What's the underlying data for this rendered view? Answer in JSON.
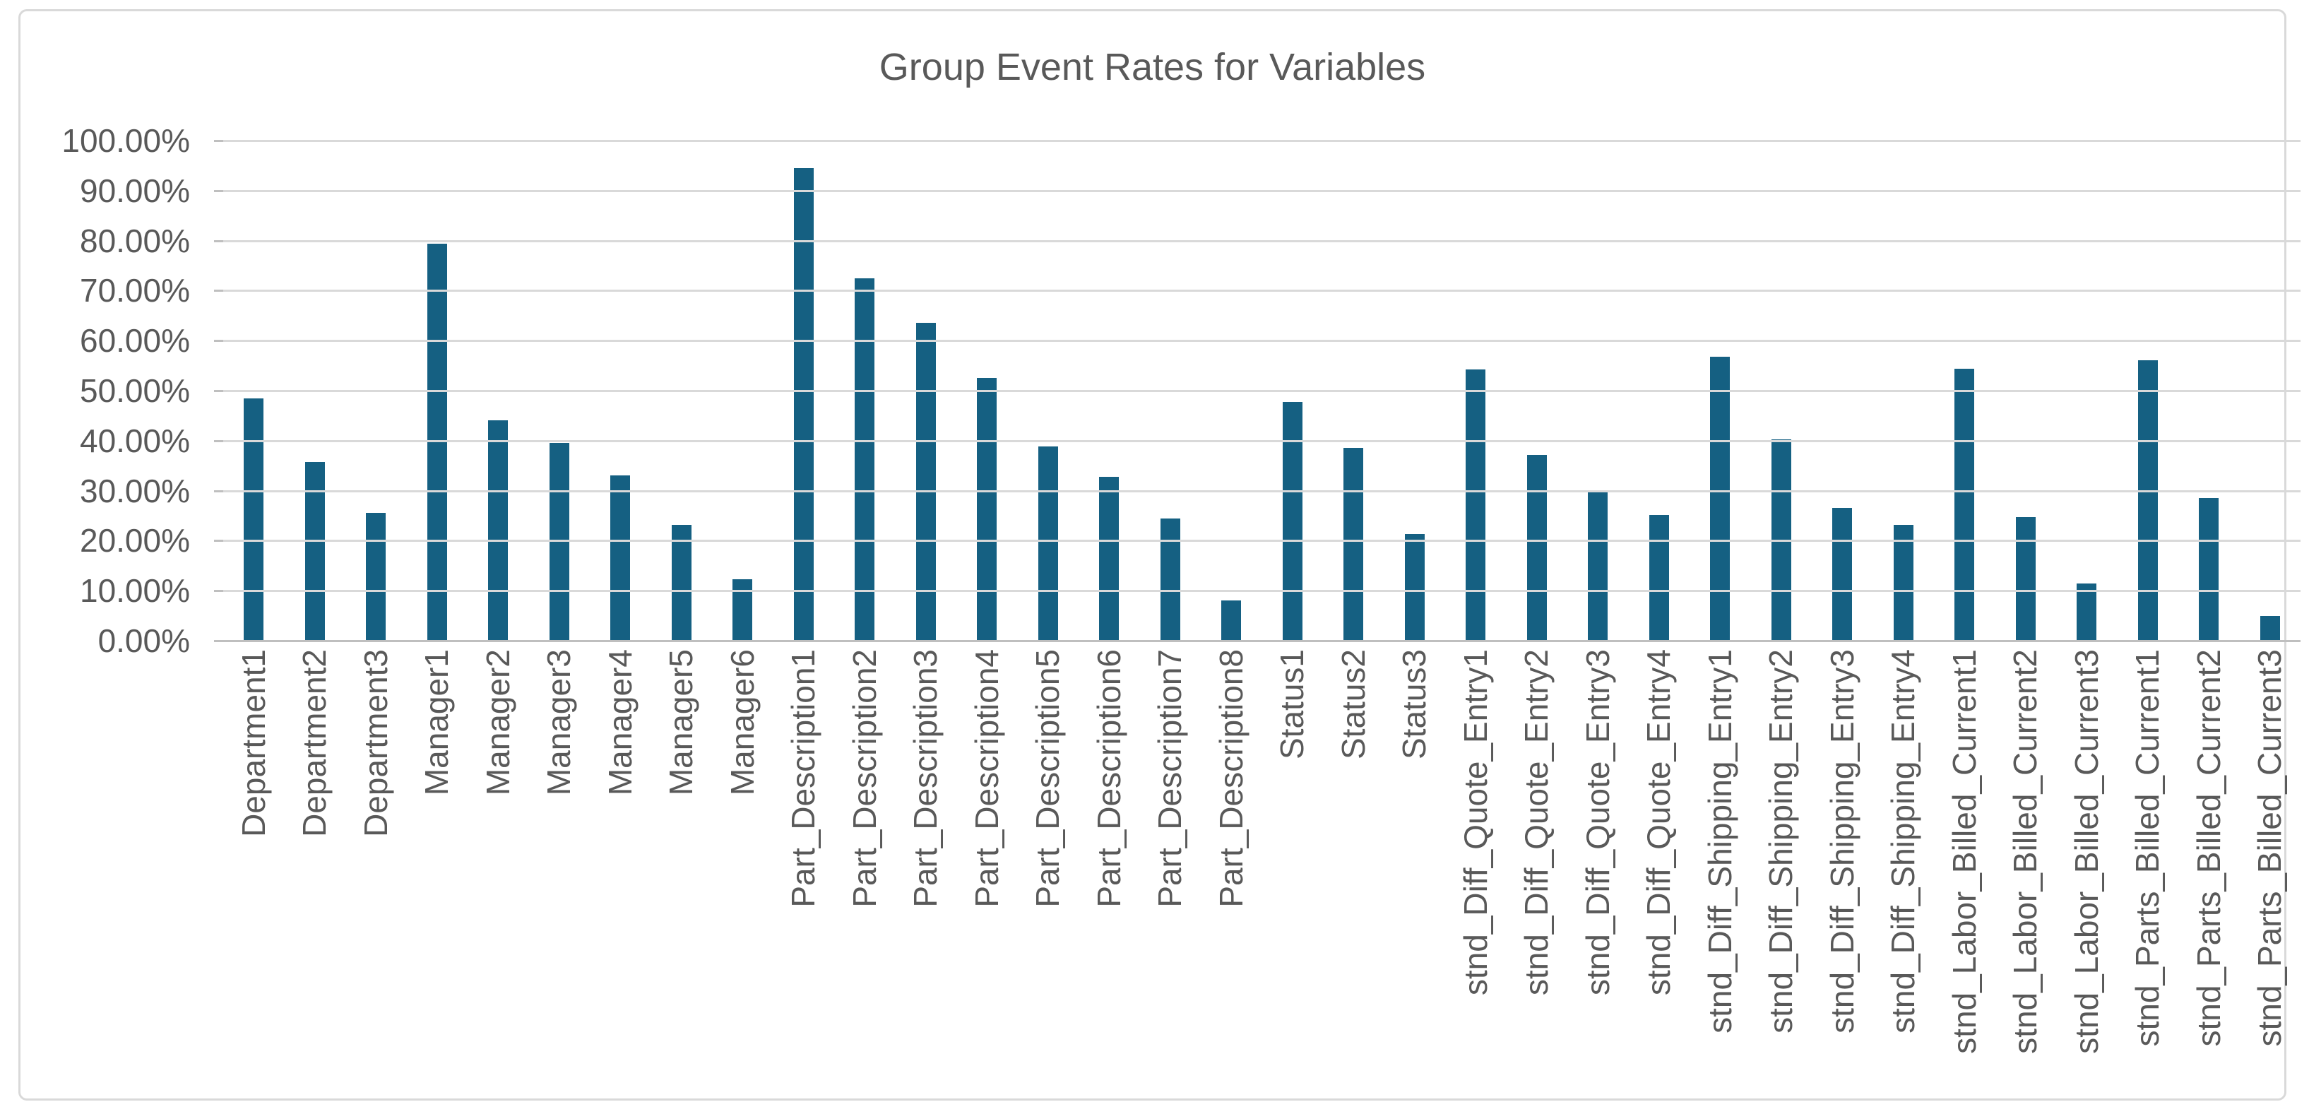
{
  "chart_data": {
    "type": "bar",
    "title": "Group Event Rates for Variables",
    "xlabel": "",
    "ylabel": "",
    "ylim": [
      0,
      100
    ],
    "ytick_step": 10,
    "ytick_labels": [
      "100.00%",
      "90.00%",
      "80.00%",
      "70.00%",
      "60.00%",
      "50.00%",
      "40.00%",
      "30.00%",
      "20.00%",
      "10.00%",
      "0.00%"
    ],
    "grid": true,
    "legend": false,
    "categories": [
      "Department1",
      "Department2",
      "Department3",
      "Manager1",
      "Manager2",
      "Manager3",
      "Manager4",
      "Manager5",
      "Manager6",
      "Part_Description1",
      "Part_Description2",
      "Part_Description3",
      "Part_Description4",
      "Part_Description5",
      "Part_Description6",
      "Part_Description7",
      "Part_Description8",
      "Status1",
      "Status2",
      "Status3",
      "stnd_Diff_Quote_Entry1",
      "stnd_Diff_Quote_Entry2",
      "stnd_Diff_Quote_Entry3",
      "stnd_Diff_Quote_Entry4",
      "stnd_Diff_Shipping_Entry1",
      "stnd_Diff_Shipping_Entry2",
      "stnd_Diff_Shipping_Entry3",
      "stnd_Diff_Shipping_Entry4",
      "stnd_Labor_Billed_Current1",
      "stnd_Labor_Billed_Current2",
      "stnd_Labor_Billed_Current3",
      "stnd_Parts_Billed_Current1",
      "stnd_Parts_Billed_Current2",
      "stnd_Parts_Billed_Current3"
    ],
    "values": [
      48.5,
      35.8,
      25.5,
      79.4,
      44.1,
      39.5,
      33.0,
      23.1,
      12.3,
      94.5,
      72.5,
      63.5,
      52.6,
      38.9,
      32.7,
      24.4,
      8.1,
      47.8,
      38.5,
      21.3,
      54.2,
      37.1,
      30.1,
      25.2,
      56.8,
      40.3,
      26.6,
      23.1,
      54.4,
      24.7,
      11.5,
      56.1,
      28.5,
      4.9
    ],
    "colors": {
      "bar": "#156082",
      "gridline": "#D9D9D9",
      "axis_line": "#BFBFBF",
      "text": "#595959",
      "frame_border": "#D9D9D9",
      "background": "#FFFFFF"
    }
  }
}
